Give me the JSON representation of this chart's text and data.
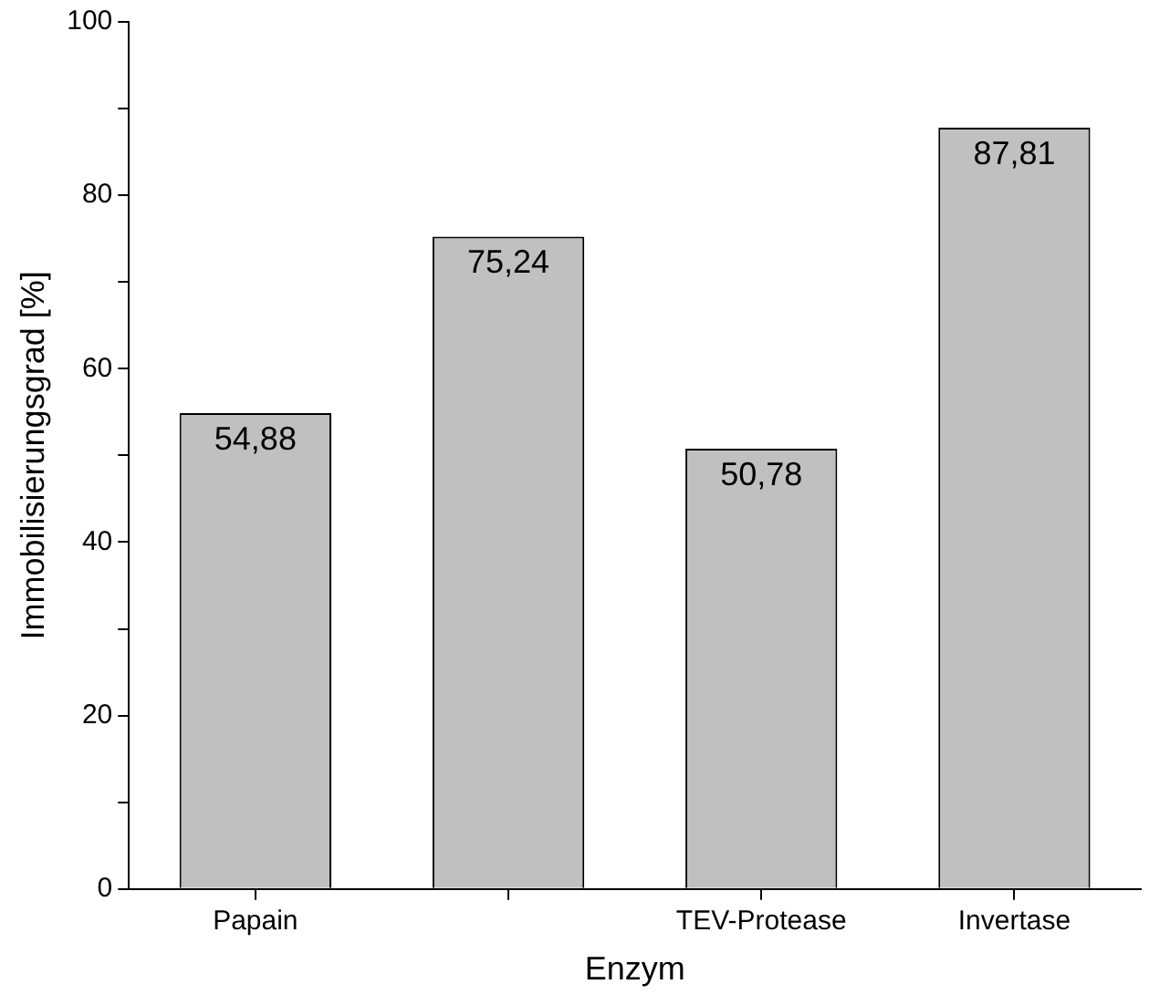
{
  "chart_data": {
    "type": "bar",
    "xlabel": "Enzym",
    "ylabel": "Immobilisierungsgrad [%]",
    "categories": [
      "Papain",
      null,
      "TEV-Protease",
      "Invertase"
    ],
    "values": [
      54.88,
      75.24,
      50.78,
      87.81
    ],
    "value_labels": [
      "54,88",
      "75,24",
      "50,78",
      "87,81"
    ],
    "color": "#c0c0c0",
    "ylim": [
      0,
      100
    ],
    "yticks": [
      0,
      {
        "value": 10,
        "label": null
      },
      20,
      {
        "value": 30,
        "label": null
      },
      40,
      {
        "value": 50,
        "label": null
      },
      60,
      {
        "value": 70,
        "label": null
      },
      80,
      {
        "value": 90,
        "label": null
      },
      100
    ],
    "grid": false,
    "legend": false
  }
}
